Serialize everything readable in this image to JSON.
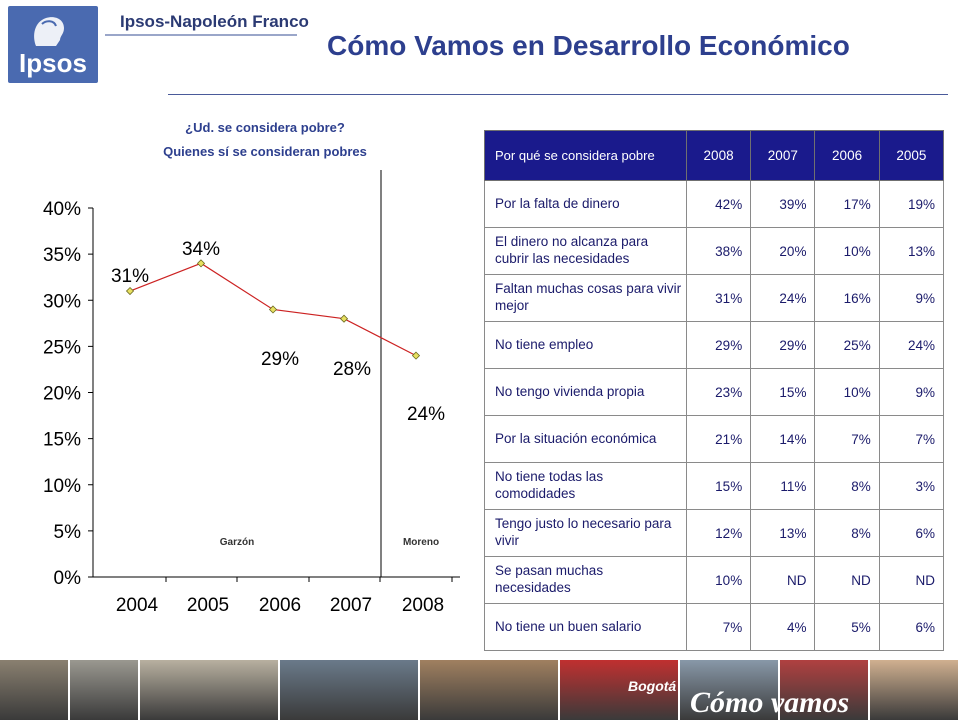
{
  "header": {
    "logo_text": "Ipsos",
    "company": "Ipsos-Napoleón Franco",
    "title": "Cómo Vamos en Desarrollo Económico"
  },
  "chart_data": {
    "type": "line",
    "title": "¿Ud. se considera pobre?",
    "subtitle": "Quienes sí se consideran pobres",
    "categories": [
      "2004",
      "2005",
      "2006",
      "2007",
      "2008"
    ],
    "series": [
      {
        "values": [
          31,
          34,
          29,
          28,
          24
        ],
        "labels": [
          "31%",
          "34%",
          "29%",
          "28%",
          "24%"
        ],
        "color": "#cc2222",
        "marker_color": "#e8e060"
      }
    ],
    "y_ticks": [
      "0%",
      "5%",
      "10%",
      "15%",
      "20%",
      "25%",
      "30%",
      "35%",
      "40%"
    ],
    "ylim": [
      0,
      40
    ],
    "annotations": [
      "Garzón",
      "Moreno"
    ],
    "grid": false
  },
  "table": {
    "headers": [
      "Por qué se considera pobre",
      "2008",
      "2007",
      "2006",
      "2005"
    ],
    "rows": [
      {
        "label": "Por la falta de dinero",
        "values": [
          "42%",
          "39%",
          "17%",
          "19%"
        ]
      },
      {
        "label": "El dinero no alcanza para cubrir las necesidades",
        "values": [
          "38%",
          "20%",
          "10%",
          "13%"
        ]
      },
      {
        "label": "Faltan muchas cosas para vivir mejor",
        "values": [
          "31%",
          "24%",
          "16%",
          "9%"
        ]
      },
      {
        "label": "No tiene empleo",
        "values": [
          "29%",
          "29%",
          "25%",
          "24%"
        ]
      },
      {
        "label": "No tengo vivienda propia",
        "values": [
          "23%",
          "15%",
          "10%",
          "9%"
        ]
      },
      {
        "label": "Por la situación económica",
        "values": [
          "21%",
          "14%",
          "7%",
          "7%"
        ]
      },
      {
        "label": "No tiene todas las comodidades",
        "values": [
          "15%",
          "11%",
          "8%",
          "3%"
        ]
      },
      {
        "label": "Tengo justo lo necesario para vivir",
        "values": [
          "12%",
          "13%",
          "8%",
          "6%"
        ]
      },
      {
        "label": "Se pasan muchas necesidades",
        "values": [
          "10%",
          "ND",
          "ND",
          "ND"
        ]
      },
      {
        "label": "No tiene un buen salario",
        "values": [
          "7%",
          "4%",
          "5%",
          "6%"
        ]
      }
    ]
  },
  "footer": {
    "brand_small": "Bogotá",
    "brand_large": "Cómo vamos",
    "photo_colors": [
      "#8a8070",
      "#9a9890",
      "#b8b0a0",
      "#6a7a8a",
      "#a08060",
      "#c03030",
      "#8898a8",
      "#b04040",
      "#d0b090"
    ]
  }
}
